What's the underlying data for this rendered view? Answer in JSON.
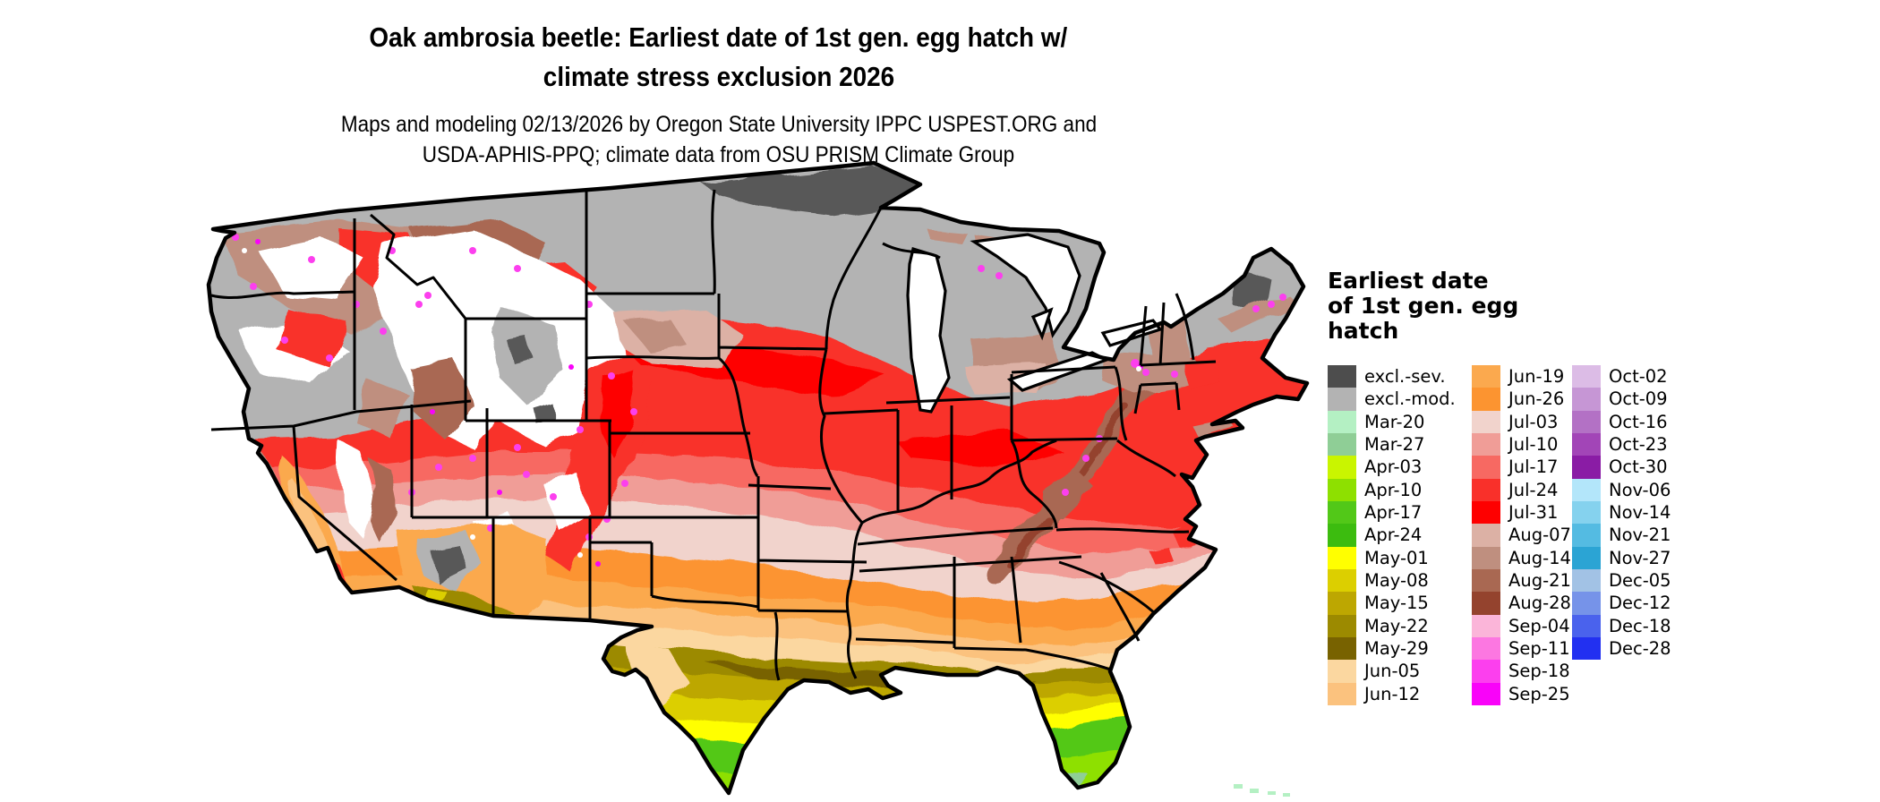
{
  "header": {
    "title_line1": "Oak ambrosia beetle: Earliest date of 1st gen. egg hatch w/",
    "title_line2": "climate stress exclusion 2026",
    "subtitle_line1": "Maps and modeling 02/13/2026 by Oregon State University IPPC USPEST.ORG and",
    "subtitle_line2": "USDA-APHIS-PPQ; climate data from OSU PRISM Climate Group"
  },
  "legend": {
    "title_lines": [
      "Earliest date",
      "of 1st gen. egg",
      "hatch"
    ],
    "columns": [
      {
        "rows": [
          {
            "label": "excl.-sev.",
            "color": "#4d4d4d"
          },
          {
            "label": "excl.-mod.",
            "color": "#b3b3b3"
          },
          {
            "label": "Mar-20",
            "color": "#b4f0c3"
          },
          {
            "label": "Mar-27",
            "color": "#8fce96"
          },
          {
            "label": "Apr-03",
            "color": "#c9f500"
          },
          {
            "label": "Apr-10",
            "color": "#8ee000"
          },
          {
            "label": "Apr-17",
            "color": "#52c818"
          },
          {
            "label": "Apr-24",
            "color": "#3cbc0f"
          },
          {
            "label": "May-01",
            "color": "#ffff00"
          },
          {
            "label": "May-08",
            "color": "#dccf00"
          },
          {
            "label": "May-15",
            "color": "#bda701"
          },
          {
            "label": "May-22",
            "color": "#9c8a00"
          },
          {
            "label": "May-29",
            "color": "#786200"
          },
          {
            "label": "Jun-05",
            "color": "#fbd7a0"
          },
          {
            "label": "Jun-12",
            "color": "#fbc27e"
          }
        ]
      },
      {
        "rows": [
          {
            "label": "Jun-19",
            "color": "#fba94e"
          },
          {
            "label": "Jun-26",
            "color": "#fc9430"
          },
          {
            "label": "Jul-03",
            "color": "#f1d3cc"
          },
          {
            "label": "Jul-10",
            "color": "#f09d97"
          },
          {
            "label": "Jul-17",
            "color": "#f76962"
          },
          {
            "label": "Jul-24",
            "color": "#f9302a"
          },
          {
            "label": "Jul-31",
            "color": "#fe0000"
          },
          {
            "label": "Aug-07",
            "color": "#dcb1a5"
          },
          {
            "label": "Aug-14",
            "color": "#bf8f7f"
          },
          {
            "label": "Aug-21",
            "color": "#a96852"
          },
          {
            "label": "Aug-28",
            "color": "#94432e"
          },
          {
            "label": "Sep-04",
            "color": "#fbb5d9"
          },
          {
            "label": "Sep-11",
            "color": "#fc77e1"
          },
          {
            "label": "Sep-18",
            "color": "#fc3fee"
          },
          {
            "label": "Sep-25",
            "color": "#f903f9"
          }
        ]
      },
      {
        "rows": [
          {
            "label": "Oct-02",
            "color": "#dcbce6"
          },
          {
            "label": "Oct-09",
            "color": "#c696d5"
          },
          {
            "label": "Oct-16",
            "color": "#b371c5"
          },
          {
            "label": "Oct-23",
            "color": "#a245b7"
          },
          {
            "label": "Oct-30",
            "color": "#8a1ca5"
          },
          {
            "label": "Nov-06",
            "color": "#b3e6fa"
          },
          {
            "label": "Nov-14",
            "color": "#85d2ee"
          },
          {
            "label": "Nov-21",
            "color": "#54bbe2"
          },
          {
            "label": "Nov-27",
            "color": "#2ba4d4"
          },
          {
            "label": "Dec-05",
            "color": "#a2c2e5"
          },
          {
            "label": "Dec-12",
            "color": "#7693e9"
          },
          {
            "label": "Dec-18",
            "color": "#4a62ed"
          },
          {
            "label": "Dec-28",
            "color": "#2230f1"
          }
        ]
      }
    ]
  },
  "map": {
    "background_color": "#ffffff",
    "boundary_color": "#000000",
    "region": "Continental United States choropleth of earliest egg-hatch date"
  }
}
